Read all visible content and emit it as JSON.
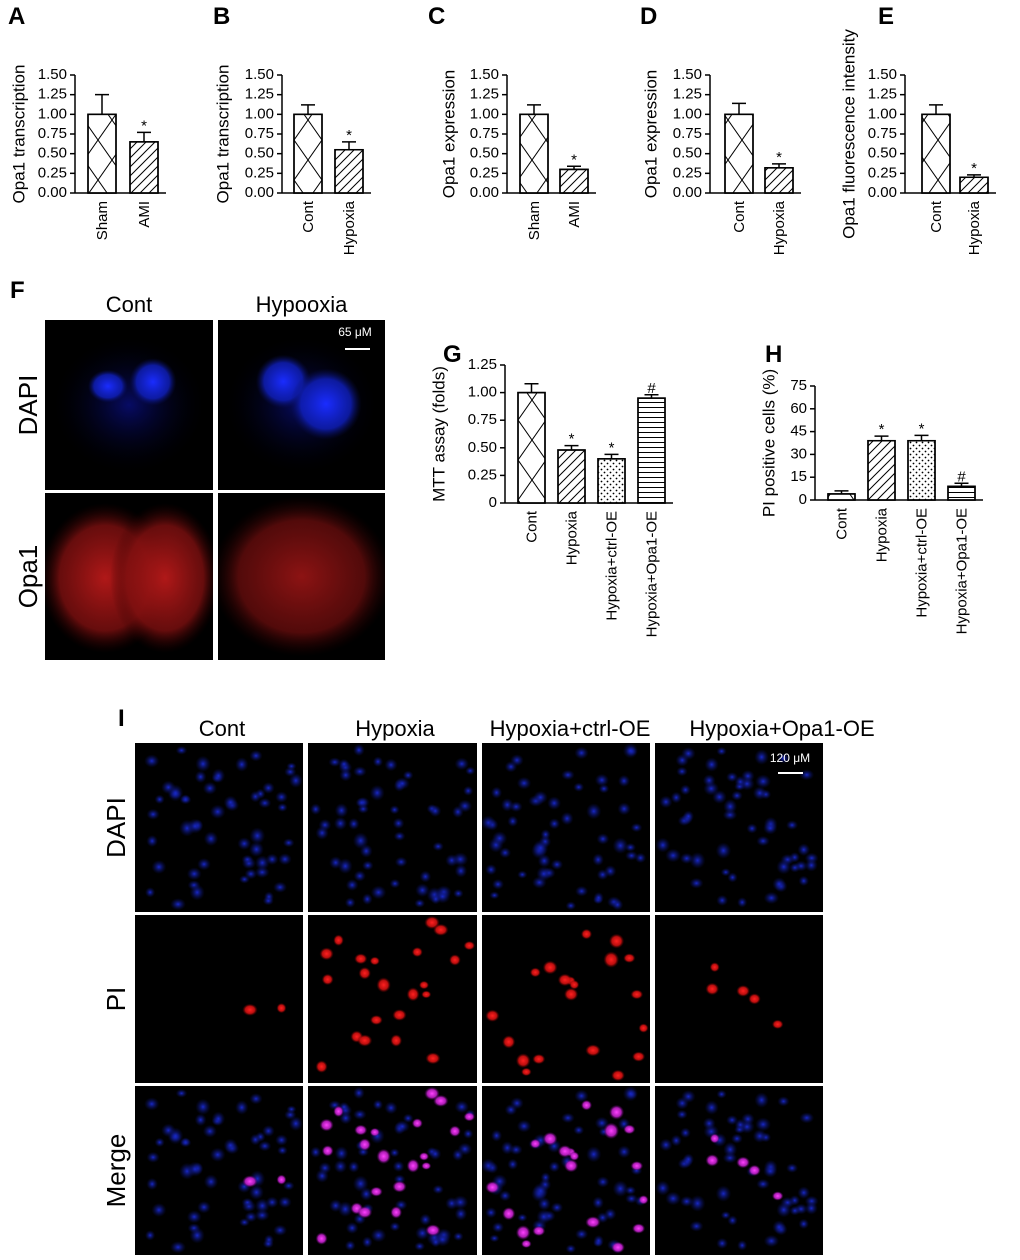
{
  "chart_data": [
    {
      "type": "bar",
      "panel_label": "A",
      "y_label": "Opa1 transcription",
      "categories": [
        "Sham",
        "AMI"
      ],
      "values": [
        1.0,
        0.65
      ],
      "errors": [
        0.25,
        0.12
      ],
      "markers": [
        null,
        "*"
      ],
      "hatches": [
        "crosshatch",
        "diagonal"
      ],
      "color": "#000000",
      "ylim": [
        0,
        1.5
      ],
      "yticks": [
        {
          "value": 0,
          "label": "0.00"
        },
        0.25,
        {
          "value": 0.5,
          "label": "0.50"
        },
        0.75,
        {
          "value": 1,
          "label": "1.00"
        },
        1.25,
        {
          "value": 1.5,
          "label": "1.50"
        }
      ]
    },
    {
      "type": "bar",
      "panel_label": "B",
      "y_label": "Opa1 transcription",
      "categories": [
        "Cont",
        "Hypoxia"
      ],
      "values": [
        1.0,
        0.55
      ],
      "errors": [
        0.12,
        0.1
      ],
      "markers": [
        null,
        "*"
      ],
      "hatches": [
        "crosshatch",
        "diagonal"
      ],
      "color": "#000000",
      "ylim": [
        0,
        1.5
      ],
      "yticks": [
        {
          "value": 0,
          "label": "0.00"
        },
        0.25,
        {
          "value": 0.5,
          "label": "0.50"
        },
        0.75,
        {
          "value": 1,
          "label": "1.00"
        },
        1.25,
        {
          "value": 1.5,
          "label": "1.50"
        }
      ]
    },
    {
      "type": "bar",
      "panel_label": "C",
      "y_label": "Opa1 expression",
      "categories": [
        "Sham",
        "AMI"
      ],
      "values": [
        1.0,
        0.3
      ],
      "errors": [
        0.12,
        0.04
      ],
      "markers": [
        null,
        "*"
      ],
      "hatches": [
        "crosshatch",
        "diagonal"
      ],
      "color": "#000000",
      "ylim": [
        0,
        1.5
      ],
      "yticks": [
        {
          "value": 0,
          "label": "0.00"
        },
        0.25,
        {
          "value": 0.5,
          "label": "0.50"
        },
        0.75,
        {
          "value": 1,
          "label": "1.00"
        },
        1.25,
        {
          "value": 1.5,
          "label": "1.50"
        }
      ]
    },
    {
      "type": "bar",
      "panel_label": "D",
      "y_label": "Opa1 expression",
      "categories": [
        "Cont",
        "Hypoxia"
      ],
      "values": [
        1.0,
        0.32
      ],
      "errors": [
        0.14,
        0.05
      ],
      "markers": [
        null,
        "*"
      ],
      "hatches": [
        "crosshatch",
        "diagonal"
      ],
      "color": "#000000",
      "ylim": [
        0,
        1.5
      ],
      "yticks": [
        {
          "value": 0,
          "label": "0.00"
        },
        0.25,
        {
          "value": 0.5,
          "label": "0.50"
        },
        0.75,
        {
          "value": 1,
          "label": "1.00"
        },
        1.25,
        {
          "value": 1.5,
          "label": "1.50"
        }
      ]
    },
    {
      "type": "bar",
      "panel_label": "E",
      "y_label": "Opa1 fluorescence intensity",
      "categories": [
        "Cont",
        "Hypoxia"
      ],
      "values": [
        1.0,
        0.2
      ],
      "errors": [
        0.12,
        0.03
      ],
      "markers": [
        null,
        "*"
      ],
      "hatches": [
        "crosshatch",
        "diagonal"
      ],
      "color": "#000000",
      "ylim": [
        0,
        1.5
      ],
      "yticks": [
        {
          "value": 0,
          "label": "0.00"
        },
        0.25,
        {
          "value": 0.5,
          "label": "0.50"
        },
        0.75,
        {
          "value": 1,
          "label": "1.00"
        },
        1.25,
        {
          "value": 1.5,
          "label": "1.50"
        }
      ]
    },
    {
      "type": "bar",
      "panel_label": "G",
      "y_label": "MTT assay (folds)",
      "categories": [
        "Cont",
        "Hypoxia",
        "Hypoxia+ctrl-OE",
        "Hypoxia+Opa1-OE"
      ],
      "values": [
        1.0,
        0.48,
        0.4,
        0.95
      ],
      "errors": [
        0.08,
        0.04,
        0.04,
        0.03
      ],
      "markers": [
        null,
        "*",
        "*",
        "#"
      ],
      "hatches": [
        "crosshatch",
        "diagonal",
        "dots",
        "horizontal"
      ],
      "color": "#000000",
      "ylim": [
        0,
        1.25
      ],
      "yticks": [
        0,
        0.25,
        {
          "value": 0.5,
          "label": "0.50"
        },
        0.75,
        {
          "value": 1,
          "label": "1.00"
        },
        1.25
      ]
    },
    {
      "type": "bar",
      "panel_label": "H",
      "y_label": "PI positive cells (%)",
      "categories": [
        "Cont",
        "Hypoxia",
        "Hypoxia+ctrl-OE",
        "Hypoxia+Opa1-OE"
      ],
      "values": [
        4,
        39,
        39,
        9
      ],
      "errors": [
        2,
        3,
        3.5,
        2
      ],
      "markers": [
        null,
        "*",
        "*",
        "#"
      ],
      "hatches": [
        "crosshatch",
        "diagonal",
        "dots",
        "horizontal"
      ],
      "color": "#000000",
      "ylim": [
        0,
        75
      ],
      "yticks": [
        0,
        15,
        30,
        45,
        60,
        75
      ]
    }
  ],
  "image_panels": [
    {
      "panel_label": "F",
      "columns": [
        "Cont",
        "Hypooxia"
      ],
      "rows": [
        "DAPI",
        "Opa1"
      ],
      "scale_bar": "65 μM"
    },
    {
      "panel_label": "I",
      "columns": [
        "Cont",
        "Hypoxia",
        "Hypoxia+ctrl-OE",
        "Hypoxia+Opa1-OE"
      ],
      "rows": [
        "DAPI",
        "PI",
        "Merge"
      ],
      "scale_bar": "120 μM"
    }
  ]
}
